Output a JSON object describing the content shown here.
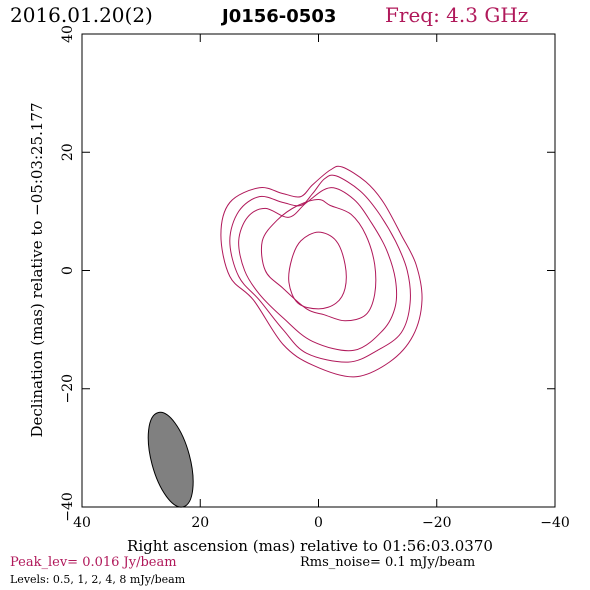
{
  "header": {
    "date": "2016.01.20(2)",
    "source": "J0156-0503",
    "frequency": "Freq: 4.3 GHz"
  },
  "footer": {
    "peak": "Peak_lev=  0.016 Jy/beam",
    "rms": "Rms_noise=  0.1 mJy/beam",
    "levels": "Levels: 0.5,   1,   2,   4,   8 mJy/beam"
  },
  "colors": {
    "contour": "#b0185a",
    "peak_text": "#b0185a",
    "freq_text": "#b0185a",
    "beam_fill": "#808080",
    "axis": "#000000"
  },
  "chart_data": {
    "type": "contour",
    "xlabel": "Right ascension (mas) relative to 01:56:03.0370",
    "ylabel": "Declination (mas) relative to −05:03:25.177",
    "xlim": [
      40,
      -40
    ],
    "ylim": [
      -40,
      40
    ],
    "xticks": [
      40,
      20,
      0,
      -20,
      -40
    ],
    "yticks": [
      -40,
      -20,
      0,
      20,
      40
    ],
    "xtick_labels": [
      "40",
      "20",
      "0",
      "−20",
      "−40"
    ],
    "ytick_labels": [
      "−40",
      "−20",
      "0",
      "20",
      "40"
    ],
    "levels_mJy_per_beam": [
      0.5,
      1,
      2,
      4,
      8
    ],
    "contours": [
      {
        "level": 0.5,
        "points": [
          [
            -4,
            17.5
          ],
          [
            -8,
            15
          ],
          [
            -11,
            11.5
          ],
          [
            -14,
            6
          ],
          [
            -16.5,
            1
          ],
          [
            -17.5,
            -5
          ],
          [
            -16,
            -11
          ],
          [
            -12,
            -15.5
          ],
          [
            -6,
            -18
          ],
          [
            1,
            -16
          ],
          [
            6,
            -12.5
          ],
          [
            11,
            -5
          ],
          [
            15,
            -1
          ],
          [
            16.5,
            6
          ],
          [
            15,
            11.5
          ],
          [
            10,
            14
          ],
          [
            6,
            13
          ],
          [
            3,
            12.5
          ],
          [
            1,
            14.5
          ],
          [
            -2,
            17
          ]
        ]
      },
      {
        "level": 1,
        "points": [
          [
            -3,
            16
          ],
          [
            -7,
            13.5
          ],
          [
            -10,
            10
          ],
          [
            -13,
            5
          ],
          [
            -15,
            0
          ],
          [
            -15.5,
            -5.5
          ],
          [
            -14,
            -10.5
          ],
          [
            -10,
            -13.5
          ],
          [
            -5,
            -15.5
          ],
          [
            2,
            -14
          ],
          [
            6,
            -10
          ],
          [
            10,
            -5
          ],
          [
            13.5,
            -1
          ],
          [
            15,
            5
          ],
          [
            13.5,
            10
          ],
          [
            10,
            12.5
          ],
          [
            6,
            11.5
          ],
          [
            3,
            11
          ],
          [
            1,
            13
          ],
          [
            -1,
            15.5
          ]
        ]
      },
      {
        "level": 2,
        "points": [
          [
            -2,
            14
          ],
          [
            -6,
            12
          ],
          [
            -9,
            8
          ],
          [
            -11.5,
            3.5
          ],
          [
            -13,
            -1.5
          ],
          [
            -13,
            -6
          ],
          [
            -11,
            -10
          ],
          [
            -6,
            -13.5
          ],
          [
            1,
            -12
          ],
          [
            6,
            -8
          ],
          [
            10,
            -4
          ],
          [
            12.5,
            0
          ],
          [
            13.5,
            5
          ],
          [
            12,
            9
          ],
          [
            9,
            10.5
          ],
          [
            5,
            9
          ],
          [
            2,
            11.5
          ]
        ]
      },
      {
        "level": 4,
        "points": [
          [
            -2,
            11
          ],
          [
            -5.5,
            9.5
          ],
          [
            -8,
            6
          ],
          [
            -9.5,
            1
          ],
          [
            -9.5,
            -4
          ],
          [
            -8,
            -7.5
          ],
          [
            -4.5,
            -8.5
          ],
          [
            -1,
            -7.5
          ],
          [
            2,
            -6.5
          ],
          [
            6,
            -3
          ],
          [
            9,
            0
          ],
          [
            9.5,
            5
          ],
          [
            7,
            8.5
          ],
          [
            3.5,
            11
          ],
          [
            0,
            12
          ]
        ]
      },
      {
        "level": 8,
        "points": [
          [
            0,
            6.5
          ],
          [
            -3,
            5
          ],
          [
            -4.5,
            1
          ],
          [
            -4.5,
            -3
          ],
          [
            -3,
            -5.5
          ],
          [
            0,
            -6.5
          ],
          [
            3.5,
            -5.5
          ],
          [
            5,
            -2
          ],
          [
            4.5,
            2
          ],
          [
            3,
            5
          ]
        ]
      }
    ],
    "beam": {
      "x": 25,
      "y": -32,
      "major_mas": 16.5,
      "minor_mas": 6.5,
      "pa_deg": -15
    },
    "grid": false
  }
}
